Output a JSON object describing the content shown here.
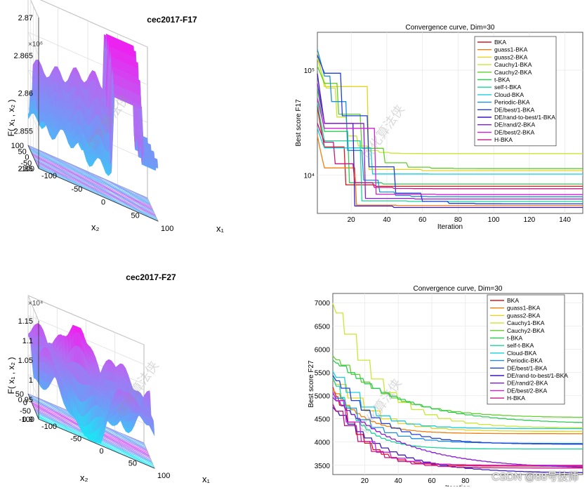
{
  "chart_data": [
    {
      "type": "surface3d",
      "title": "cec2017-F17",
      "exponent_label": "×10⁶",
      "zlabel": "F( x₁ , x₂ )",
      "xlabel": "x₁",
      "ylabel": "x₂",
      "z_ticks": [
        "2.85",
        "2.855",
        "2.86",
        "2.865",
        "2.87"
      ],
      "x2_ticks": [
        "100",
        "50",
        "0",
        "-50",
        "-100"
      ],
      "x1_ticks": [
        "-100",
        "-50",
        "0",
        "50",
        "100"
      ],
      "colormap": [
        "#19e8f5",
        "#6a9ef8",
        "#b46af2",
        "#f21cf0"
      ]
    },
    {
      "type": "line",
      "title": "Convergence curve, Dim=30",
      "xlabel": "Iteration",
      "ylabel": "Best score F17",
      "yscale": "log",
      "y_tick_labels": [
        "10⁵",
        "10⁴"
      ],
      "xlim": [
        1,
        150
      ],
      "x_ticks": [
        "20",
        "40",
        "60",
        "80",
        "100",
        "120",
        "140"
      ],
      "series": [
        {
          "name": "BKA",
          "color": "#d7191c",
          "final": 7800
        },
        {
          "name": "guass1-BKA",
          "color": "#f07f0f",
          "final": 5100
        },
        {
          "name": "guass2-BKA",
          "color": "#e6d320",
          "final": 11000
        },
        {
          "name": "Cauchy1-BKA",
          "color": "#c8e832",
          "final": 16000
        },
        {
          "name": "Cauchy2-BKA",
          "color": "#5fd12a",
          "final": 11500
        },
        {
          "name": "t-BKA",
          "color": "#2ecc57",
          "final": 8200
        },
        {
          "name": "self-t-BKA",
          "color": "#19d49a",
          "final": 5600
        },
        {
          "name": "Cloud-BKA",
          "color": "#17d0de",
          "final": 10200
        },
        {
          "name": "Periodic-BKA",
          "color": "#1c8fe0",
          "final": 6200
        },
        {
          "name": "DE/best/1-BKA",
          "color": "#1f3fd6",
          "final": 5300
        },
        {
          "name": "DE/rand-to-best/1-BKA",
          "color": "#3b16c4",
          "final": 4900
        },
        {
          "name": "DE/rand/2-BKA",
          "color": "#8a18d8",
          "final": 5900
        },
        {
          "name": "DE/best/2-BKA",
          "color": "#d21ed8",
          "final": 6500
        },
        {
          "name": "H-BKA",
          "color": "#c71585",
          "final": 7400
        }
      ]
    },
    {
      "type": "surface3d",
      "title": "cec2017-F27",
      "exponent_label": "×10⁴",
      "zlabel": "F( x₁ , x₂ )",
      "xlabel": "x₁",
      "ylabel": "x₂",
      "z_ticks": [
        "0.9",
        "0.95",
        "1",
        "1.05",
        "1.1",
        "1.15"
      ],
      "x2_ticks": [
        "50",
        "0",
        "-50",
        "-100"
      ],
      "x1_ticks": [
        "-100",
        "-50",
        "0",
        "50",
        "100"
      ],
      "colormap": [
        "#19e8f5",
        "#6a9ef8",
        "#b46af2",
        "#f21cf0"
      ]
    },
    {
      "type": "line",
      "title": "Convergence curve, Dim=30",
      "xlabel": "Iteration",
      "ylabel": "Best score F27",
      "ylim": [
        3300,
        7200
      ],
      "y_ticks": [
        "3500",
        "4000",
        "4500",
        "5000",
        "5500",
        "6000",
        "6500",
        "7000"
      ],
      "xlim": [
        1,
        150
      ],
      "x_ticks": [
        "20",
        "40",
        "60",
        "80"
      ],
      "series": [
        {
          "name": "BKA",
          "color": "#d7191c",
          "start": 5300,
          "final": 3480
        },
        {
          "name": "guass1-BKA",
          "color": "#f07f0f",
          "start": 5200,
          "final": 4180
        },
        {
          "name": "guass2-BKA",
          "color": "#e6d320",
          "start": 5400,
          "final": 4230
        },
        {
          "name": "Cauchy1-BKA",
          "color": "#c8e832",
          "start": 7100,
          "final": 4300
        },
        {
          "name": "Cauchy2-BKA",
          "color": "#5fd12a",
          "start": 5900,
          "final": 4520
        },
        {
          "name": "t-BKA",
          "color": "#2ecc57",
          "start": 5800,
          "final": 4380
        },
        {
          "name": "self-t-BKA",
          "color": "#19d49a",
          "start": 5500,
          "final": 3850
        },
        {
          "name": "Cloud-BKA",
          "color": "#17d0de",
          "start": 5600,
          "final": 4290
        },
        {
          "name": "Periodic-BKA",
          "color": "#1c8fe0",
          "start": 5100,
          "final": 3970
        },
        {
          "name": "DE/best/1-BKA",
          "color": "#1f3fd6",
          "start": 5500,
          "final": 3950
        },
        {
          "name": "DE/rand-to-best/1-BKA",
          "color": "#3b16c4",
          "start": 4800,
          "final": 3330
        },
        {
          "name": "DE/rand/2-BKA",
          "color": "#8a18d8",
          "start": 5000,
          "final": 3420
        },
        {
          "name": "DE/best/2-BKA",
          "color": "#d21ed8",
          "start": 5200,
          "final": 3500
        },
        {
          "name": "H-BKA",
          "color": "#c71585",
          "start": 4900,
          "final": 3440
        }
      ]
    }
  ],
  "watermark": "CSDN @88号技师",
  "faint_watermark": "优化算法侠"
}
